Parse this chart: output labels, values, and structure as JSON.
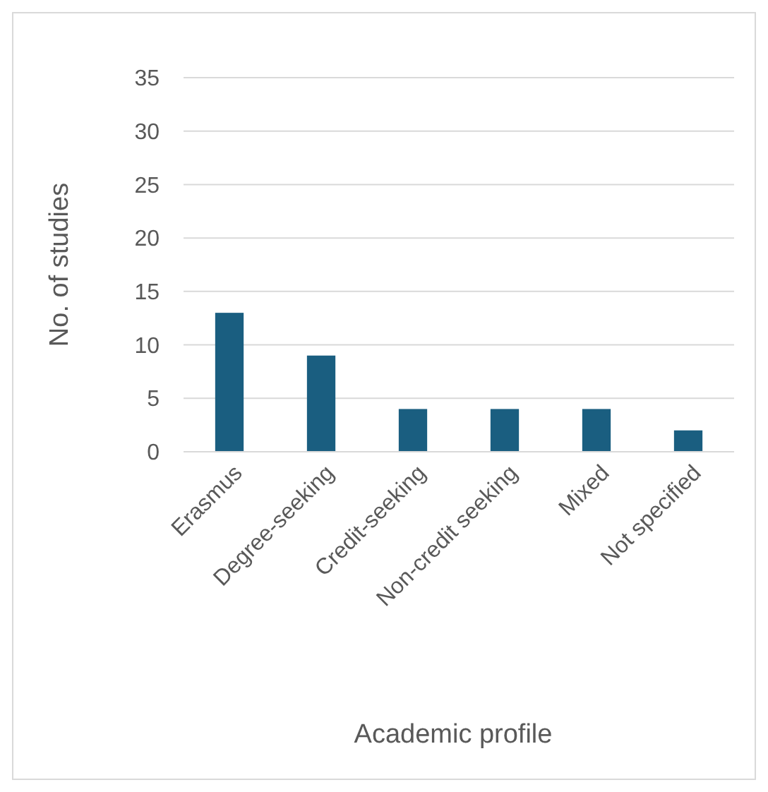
{
  "chart_data": {
    "type": "bar",
    "xlabel": "Academic profile",
    "ylabel": "No. of studies",
    "categories": [
      "Erasmus",
      "Degree-seeking",
      "Credit-seeking",
      "Non-credit seeking",
      "Mixed",
      "Not specified"
    ],
    "values": [
      13,
      9,
      4,
      4,
      4,
      2
    ],
    "color": "#1a5e80",
    "ylim": [
      0,
      35
    ],
    "yticks": [
      0,
      5,
      10,
      15,
      20,
      25,
      30,
      35
    ],
    "grid": "y"
  }
}
